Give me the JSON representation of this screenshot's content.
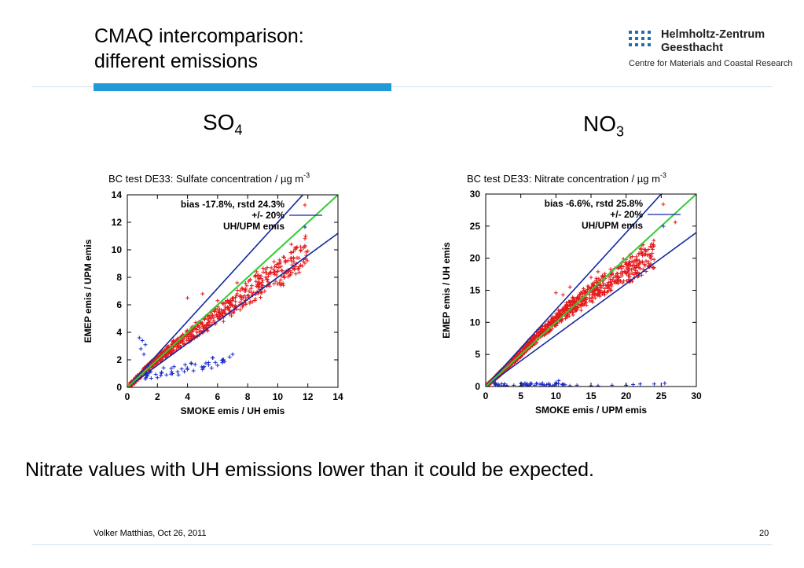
{
  "slide": {
    "title_line1": "CMAQ intercomparison:",
    "title_line2": "different emissions",
    "caption": "Nitrate values with UH emissions lower than it could be expected.",
    "footer_author": "Volker Matthias, Oct 26, 2011",
    "page_number": "20",
    "accent_color": "#1f9ad6"
  },
  "logo": {
    "name_line1": "Helmholtz-Zentrum",
    "name_line2": "Geesthacht",
    "tagline": "Centre for Materials and Coastal Research",
    "dot_color": "#1f6fb5"
  },
  "headings": {
    "so4_base": "SO",
    "so4_sub": "4",
    "no3_base": "NO",
    "no3_sub": "3"
  },
  "chart_data": [
    {
      "type": "scatter",
      "title": "BC test DE33: Sulfate concentration / µg m",
      "title_sup": "-3",
      "xlabel": "SMOKE emis / UH emis",
      "ylabel": "EMEP emis / UPM emis",
      "xlim": [
        0,
        14
      ],
      "ylim": [
        0,
        14
      ],
      "xticks": [
        0,
        2,
        4,
        6,
        8,
        10,
        12,
        14
      ],
      "yticks": [
        0,
        2,
        4,
        6,
        8,
        10,
        12,
        14
      ],
      "annotation": "bias -17.8%, rstd 24.3%",
      "legend": [
        "+/- 20%",
        "UH/UPM emis"
      ],
      "legend_position": "top-left",
      "lines": [
        {
          "name": "+/- 20%",
          "color": "#1428a0",
          "slope": 1.2
        },
        {
          "name": "",
          "color": "#1428a0",
          "slope": 0.8
        },
        {
          "name": "",
          "color": "#33cc33",
          "slope": 1.0
        }
      ],
      "red_cloud": {
        "color": "#e41a1c",
        "description_points": [
          [
            1,
            1.1
          ],
          [
            2,
            2.0
          ],
          [
            3,
            2.9
          ],
          [
            4,
            3.7
          ],
          [
            5,
            4.5
          ],
          [
            6,
            5.3
          ],
          [
            7,
            5.9
          ],
          [
            8,
            6.9
          ],
          [
            9,
            7.6
          ],
          [
            10,
            8.3
          ],
          [
            11,
            9.1
          ],
          [
            12,
            10.0
          ]
        ],
        "outliers": [
          [
            4,
            6.5
          ],
          [
            5,
            6.8
          ],
          [
            6,
            6.3
          ],
          [
            7,
            6.5
          ],
          [
            7.3,
            7.6
          ],
          [
            8.6,
            8.4
          ],
          [
            9,
            7.8
          ],
          [
            10.5,
            8.4
          ],
          [
            11.4,
            9.4
          ],
          [
            11.8,
            10.3
          ],
          [
            11.9,
            9.6
          ],
          [
            10.9,
            10.4
          ]
        ]
      },
      "blue_points": {
        "color": "#1a2bcc",
        "points": [
          [
            0.8,
            3.6
          ],
          [
            1,
            3.4
          ],
          [
            1.2,
            3.1
          ],
          [
            0.9,
            2.8
          ],
          [
            1.1,
            2.4
          ],
          [
            1.4,
            1.5
          ],
          [
            2,
            0.7
          ],
          [
            2.6,
            0.9
          ],
          [
            3,
            1.0
          ],
          [
            3.4,
            0.9
          ],
          [
            4,
            1.3
          ],
          [
            4.4,
            1.2
          ],
          [
            5,
            1.3
          ],
          [
            5.6,
            1.4
          ],
          [
            6,
            1.6
          ],
          [
            6.4,
            2.0
          ],
          [
            6.8,
            2.2
          ],
          [
            7,
            2.4
          ],
          [
            5.4,
            1.8
          ]
        ]
      },
      "counts": {
        "red": 700,
        "blue_extra": 0
      }
    },
    {
      "type": "scatter",
      "title": "BC test DE33: Nitrate concentration / µg m",
      "title_sup": "-3",
      "xlabel": "SMOKE emis / UPM emis",
      "ylabel": "EMEP emis / UH emis",
      "xlim": [
        0,
        30
      ],
      "ylim": [
        0,
        30
      ],
      "xticks": [
        0,
        5,
        10,
        15,
        20,
        25,
        30
      ],
      "yticks": [
        0,
        5,
        10,
        15,
        20,
        25,
        30
      ],
      "annotation": "bias -6.6%, rstd 25.8%",
      "legend": [
        "+/- 20%",
        "UH/UPM emis"
      ],
      "legend_position": "top-left",
      "lines": [
        {
          "name": "+/- 20%",
          "color": "#1428a0",
          "slope": 1.2
        },
        {
          "name": "",
          "color": "#1428a0",
          "slope": 0.8
        },
        {
          "name": "",
          "color": "#33cc33",
          "slope": 1.0
        }
      ],
      "red_cloud": {
        "color": "#e41a1c",
        "description_points": [
          [
            1,
            1.0
          ],
          [
            3,
            3.0
          ],
          [
            5,
            5.2
          ],
          [
            7,
            7.5
          ],
          [
            9,
            9.5
          ],
          [
            11,
            11.4
          ],
          [
            13,
            13.0
          ],
          [
            15,
            14.5
          ],
          [
            17,
            16.0
          ],
          [
            19,
            17.5
          ],
          [
            21,
            18.6
          ],
          [
            23,
            20.2
          ],
          [
            24,
            20.6
          ]
        ],
        "outliers": [
          [
            10,
            14.6
          ],
          [
            11,
            14.3
          ],
          [
            12,
            15.5
          ],
          [
            15,
            17.0
          ],
          [
            16,
            17.9
          ],
          [
            17.5,
            15.8
          ],
          [
            18,
            17.6
          ],
          [
            19,
            18.5
          ],
          [
            20,
            19.8
          ],
          [
            21.5,
            18.9
          ],
          [
            23,
            20.5
          ],
          [
            23.5,
            19.1
          ],
          [
            27,
            25.6
          ]
        ]
      },
      "blue_points": {
        "color": "#1a2bcc",
        "points": [
          [
            2,
            0.1
          ],
          [
            3,
            0.1
          ],
          [
            4,
            0.2
          ],
          [
            5,
            0.1
          ],
          [
            6,
            0.1
          ],
          [
            7,
            0.2
          ],
          [
            8,
            0.3
          ],
          [
            9,
            0.3
          ],
          [
            10,
            0.6
          ],
          [
            10.4,
            0.9
          ],
          [
            11,
            0.4
          ],
          [
            12,
            0.1
          ],
          [
            13,
            0.2
          ],
          [
            15,
            0.1
          ],
          [
            16,
            0.1
          ],
          [
            18,
            0.2
          ],
          [
            20,
            0.2
          ],
          [
            21,
            0.3
          ],
          [
            22,
            0.4
          ],
          [
            24,
            0.4
          ],
          [
            25.5,
            0.5
          ]
        ]
      },
      "counts": {
        "red": 1100
      }
    }
  ]
}
